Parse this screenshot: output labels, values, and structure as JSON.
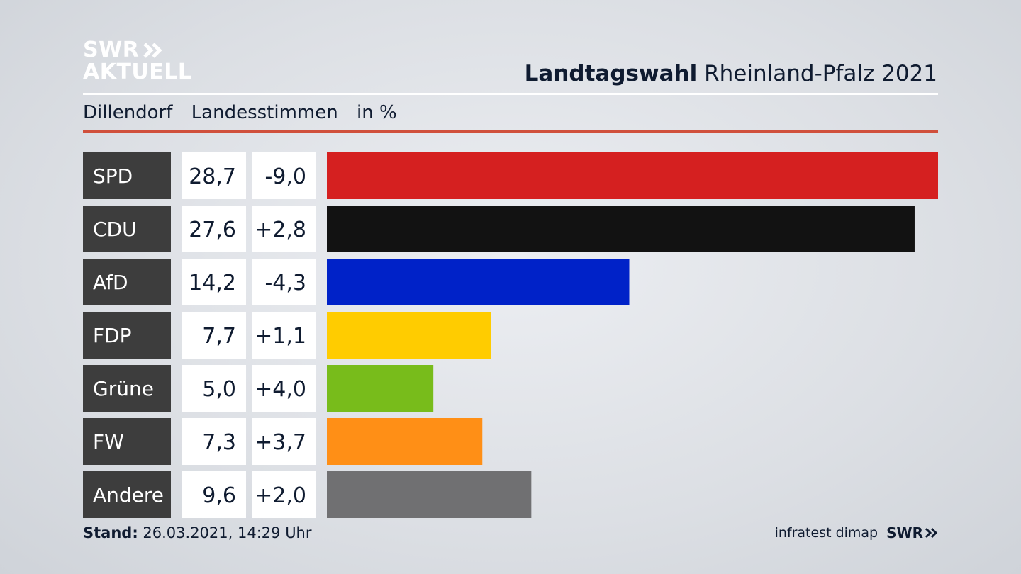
{
  "brand": {
    "logo_line1": "SWR",
    "logo_line2": "AKTUELL"
  },
  "title": {
    "bold": "Landtagswahl",
    "regular": "Rheinland-Pfalz 2021"
  },
  "subtitle": {
    "place": "Dillendorf",
    "metric": "Landesstimmen",
    "unit": "in %"
  },
  "footer": {
    "stand_label": "Stand:",
    "stand_value": "26.03.2021, 14:29 Uhr",
    "source": "infratest dimap",
    "swr": "SWR"
  },
  "colors": {
    "label_bg": "#3d3d3d",
    "value_bg": "#ffffff",
    "accent_rule": "#d0503c"
  },
  "chart_data": {
    "type": "bar",
    "orientation": "horizontal",
    "categories": [
      "SPD",
      "CDU",
      "AfD",
      "FDP",
      "Grüne",
      "FW",
      "Andere"
    ],
    "values": [
      28.7,
      27.6,
      14.2,
      7.7,
      5.0,
      7.3,
      9.6
    ],
    "values_label": [
      "28,7",
      "27,6",
      "14,2",
      "7,7",
      "5,0",
      "7,3",
      "9,6"
    ],
    "change": [
      -9.0,
      2.8,
      -4.3,
      1.1,
      4.0,
      3.7,
      2.0
    ],
    "change_label": [
      "-9,0",
      "+2,8",
      "-4,3",
      "+1,1",
      "+4,0",
      "+3,7",
      "+2,0"
    ],
    "bar_colors": [
      "#d52020",
      "#121212",
      "#0022c8",
      "#ffcc00",
      "#78bc1b",
      "#ff8f16",
      "#707072"
    ],
    "xlim": [
      0,
      28.7
    ]
  }
}
